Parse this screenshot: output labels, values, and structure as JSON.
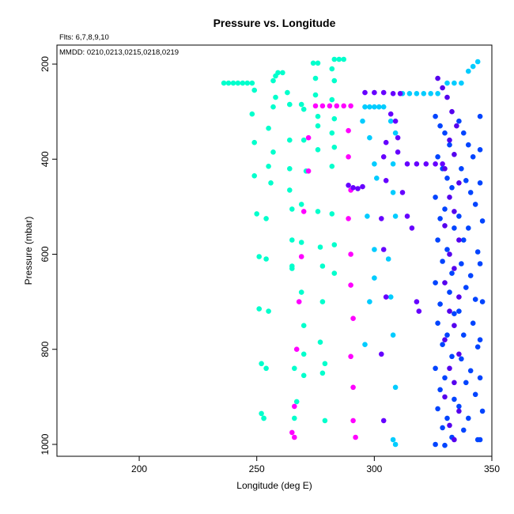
{
  "chart_data": {
    "type": "scatter",
    "title": "Pressure vs. Longitude",
    "xlabel": "Longitude (deg E)",
    "ylabel": "Pressure (mbar)",
    "xlim": [
      165,
      350
    ],
    "ylim": [
      1025,
      160
    ],
    "x_ticks": [
      200,
      250,
      300,
      350
    ],
    "y_ticks": [
      200,
      400,
      600,
      800,
      1000
    ],
    "notes": {
      "fits": "Flts: 6,7,8,9,10",
      "dates": "MMDD: 0210,0213,0215,0218,0219"
    },
    "grid": false,
    "series": [
      {
        "color": "#00ffcc",
        "points": [
          [
            236,
            240
          ],
          [
            238,
            240
          ],
          [
            240,
            240
          ],
          [
            242,
            240
          ],
          [
            244,
            240
          ],
          [
            246,
            240
          ],
          [
            248,
            240
          ],
          [
            249,
            255
          ],
          [
            248,
            305
          ],
          [
            249,
            365
          ],
          [
            249,
            435
          ],
          [
            250,
            515
          ],
          [
            251,
            605
          ],
          [
            251,
            715
          ],
          [
            252,
            830
          ],
          [
            252,
            935
          ],
          [
            253,
            945
          ],
          [
            255,
            335
          ],
          [
            255,
            415
          ],
          [
            256,
            450
          ],
          [
            254,
            525
          ],
          [
            254,
            610
          ],
          [
            255,
            720
          ],
          [
            254,
            840
          ],
          [
            253,
            945
          ],
          [
            257,
            235
          ],
          [
            258,
            225
          ],
          [
            259,
            218
          ],
          [
            261,
            218
          ],
          [
            258,
            270
          ],
          [
            257,
            290
          ],
          [
            257,
            385
          ],
          [
            263,
            260
          ],
          [
            264,
            285
          ],
          [
            264,
            360
          ],
          [
            264,
            420
          ],
          [
            264,
            465
          ],
          [
            265,
            505
          ],
          [
            265,
            570
          ],
          [
            265,
            625
          ],
          [
            265,
            630
          ],
          [
            266,
            840
          ],
          [
            267,
            910
          ],
          [
            266,
            945
          ],
          [
            269,
            285
          ],
          [
            270,
            295
          ],
          [
            270,
            360
          ],
          [
            271,
            425
          ],
          [
            269,
            495
          ],
          [
            269,
            575
          ],
          [
            269,
            680
          ],
          [
            270,
            750
          ],
          [
            270,
            810
          ],
          [
            270,
            855
          ],
          [
            274,
            198
          ],
          [
            276,
            198
          ],
          [
            275,
            230
          ],
          [
            275,
            265
          ],
          [
            276,
            310
          ],
          [
            276,
            330
          ],
          [
            276,
            380
          ],
          [
            276,
            510
          ],
          [
            277,
            585
          ],
          [
            278,
            625
          ],
          [
            278,
            700
          ],
          [
            277,
            785
          ],
          [
            279,
            830
          ],
          [
            278,
            850
          ],
          [
            279,
            950
          ],
          [
            283,
            190
          ],
          [
            285,
            190
          ],
          [
            287,
            190
          ],
          [
            282,
            210
          ],
          [
            283,
            235
          ],
          [
            282,
            275
          ],
          [
            283,
            315
          ],
          [
            282,
            345
          ],
          [
            283,
            375
          ],
          [
            282,
            415
          ],
          [
            282,
            515
          ],
          [
            283,
            580
          ],
          [
            283,
            640
          ]
        ]
      },
      {
        "color": "#ff00ff",
        "points": [
          [
            275,
            288
          ],
          [
            278,
            288
          ],
          [
            281,
            288
          ],
          [
            284,
            288
          ],
          [
            287,
            288
          ],
          [
            290,
            288
          ],
          [
            272,
            355
          ],
          [
            272,
            425
          ],
          [
            270,
            510
          ],
          [
            269,
            605
          ],
          [
            268,
            700
          ],
          [
            267,
            800
          ],
          [
            266,
            920
          ],
          [
            265,
            975
          ],
          [
            266,
            985
          ],
          [
            289,
            340
          ],
          [
            289,
            395
          ],
          [
            290,
            465
          ],
          [
            289,
            525
          ],
          [
            290,
            600
          ],
          [
            290,
            665
          ],
          [
            291,
            735
          ],
          [
            290,
            815
          ],
          [
            291,
            880
          ],
          [
            291,
            950
          ],
          [
            292,
            985
          ]
        ]
      },
      {
        "color": "#00ccff",
        "points": [
          [
            296,
            290
          ],
          [
            298,
            290
          ],
          [
            300,
            290
          ],
          [
            302,
            290
          ],
          [
            304,
            290
          ],
          [
            312,
            262
          ],
          [
            315,
            262
          ],
          [
            318,
            262
          ],
          [
            321,
            262
          ],
          [
            324,
            262
          ],
          [
            327,
            262
          ],
          [
            331,
            240
          ],
          [
            334,
            240
          ],
          [
            337,
            240
          ],
          [
            340,
            215
          ],
          [
            342,
            205
          ],
          [
            344,
            195
          ],
          [
            295,
            320
          ],
          [
            298,
            355
          ],
          [
            300,
            410
          ],
          [
            301,
            440
          ],
          [
            297,
            520
          ],
          [
            300,
            590
          ],
          [
            300,
            650
          ],
          [
            298,
            700
          ],
          [
            296,
            790
          ],
          [
            307,
            320
          ],
          [
            309,
            345
          ],
          [
            308,
            410
          ],
          [
            308,
            470
          ],
          [
            309,
            520
          ],
          [
            306,
            610
          ],
          [
            307,
            690
          ],
          [
            308,
            770
          ],
          [
            309,
            880
          ],
          [
            308,
            990
          ],
          [
            309,
            1000
          ]
        ]
      },
      {
        "color": "#6600ff",
        "points": [
          [
            296,
            260
          ],
          [
            300,
            260
          ],
          [
            304,
            260
          ],
          [
            308,
            262
          ],
          [
            311,
            262
          ],
          [
            314,
            410
          ],
          [
            318,
            410
          ],
          [
            322,
            410
          ],
          [
            326,
            410
          ],
          [
            329,
            410
          ],
          [
            289,
            455
          ],
          [
            291,
            460
          ],
          [
            293,
            462
          ],
          [
            295,
            458
          ],
          [
            305,
            365
          ],
          [
            304,
            395
          ],
          [
            305,
            445
          ],
          [
            303,
            525
          ],
          [
            304,
            590
          ],
          [
            305,
            690
          ],
          [
            303,
            810
          ],
          [
            304,
            950
          ],
          [
            307,
            305
          ],
          [
            309,
            320
          ],
          [
            310,
            355
          ],
          [
            310,
            385
          ],
          [
            312,
            470
          ],
          [
            314,
            520
          ],
          [
            316,
            545
          ],
          [
            318,
            700
          ],
          [
            319,
            720
          ]
        ]
      },
      {
        "color": "#0044ff",
        "points": [
          [
            326,
            310
          ],
          [
            328,
            330
          ],
          [
            330,
            345
          ],
          [
            332,
            370
          ],
          [
            327,
            395
          ],
          [
            329,
            420
          ],
          [
            331,
            440
          ],
          [
            333,
            460
          ],
          [
            326,
            480
          ],
          [
            330,
            505
          ],
          [
            328,
            525
          ],
          [
            334,
            545
          ],
          [
            327,
            570
          ],
          [
            331,
            590
          ],
          [
            329,
            615
          ],
          [
            333,
            640
          ],
          [
            326,
            660
          ],
          [
            332,
            680
          ],
          [
            328,
            705
          ],
          [
            334,
            725
          ],
          [
            327,
            745
          ],
          [
            331,
            770
          ],
          [
            329,
            790
          ],
          [
            333,
            815
          ],
          [
            326,
            840
          ],
          [
            330,
            860
          ],
          [
            328,
            885
          ],
          [
            334,
            905
          ],
          [
            327,
            925
          ],
          [
            331,
            945
          ],
          [
            329,
            965
          ],
          [
            333,
            985
          ],
          [
            326,
            1000
          ],
          [
            330,
            1002
          ],
          [
            336,
            320
          ],
          [
            338,
            345
          ],
          [
            340,
            370
          ],
          [
            342,
            395
          ],
          [
            337,
            420
          ],
          [
            339,
            445
          ],
          [
            341,
            470
          ],
          [
            343,
            495
          ],
          [
            336,
            520
          ],
          [
            340,
            545
          ],
          [
            338,
            570
          ],
          [
            344,
            595
          ],
          [
            337,
            620
          ],
          [
            341,
            645
          ],
          [
            339,
            670
          ],
          [
            343,
            695
          ],
          [
            336,
            720
          ],
          [
            342,
            745
          ],
          [
            338,
            770
          ],
          [
            344,
            795
          ],
          [
            337,
            820
          ],
          [
            341,
            845
          ],
          [
            339,
            870
          ],
          [
            343,
            895
          ],
          [
            336,
            920
          ],
          [
            340,
            945
          ],
          [
            338,
            970
          ],
          [
            344,
            990
          ],
          [
            345,
            310
          ],
          [
            345,
            380
          ],
          [
            345,
            450
          ],
          [
            346,
            530
          ],
          [
            345,
            620
          ],
          [
            346,
            700
          ],
          [
            345,
            780
          ],
          [
            345,
            860
          ],
          [
            346,
            930
          ],
          [
            345,
            990
          ]
        ]
      },
      {
        "color": "#5500ee",
        "points": [
          [
            327,
            230
          ],
          [
            329,
            250
          ],
          [
            331,
            270
          ],
          [
            333,
            300
          ],
          [
            335,
            330
          ],
          [
            332,
            360
          ],
          [
            334,
            390
          ],
          [
            330,
            420
          ],
          [
            336,
            450
          ],
          [
            332,
            480
          ],
          [
            334,
            510
          ],
          [
            330,
            540
          ],
          [
            336,
            570
          ],
          [
            332,
            600
          ],
          [
            334,
            630
          ],
          [
            330,
            660
          ],
          [
            336,
            690
          ],
          [
            332,
            720
          ],
          [
            334,
            750
          ],
          [
            330,
            780
          ],
          [
            336,
            810
          ],
          [
            332,
            840
          ],
          [
            334,
            870
          ],
          [
            330,
            900
          ],
          [
            336,
            930
          ],
          [
            332,
            960
          ],
          [
            334,
            990
          ]
        ]
      }
    ]
  }
}
